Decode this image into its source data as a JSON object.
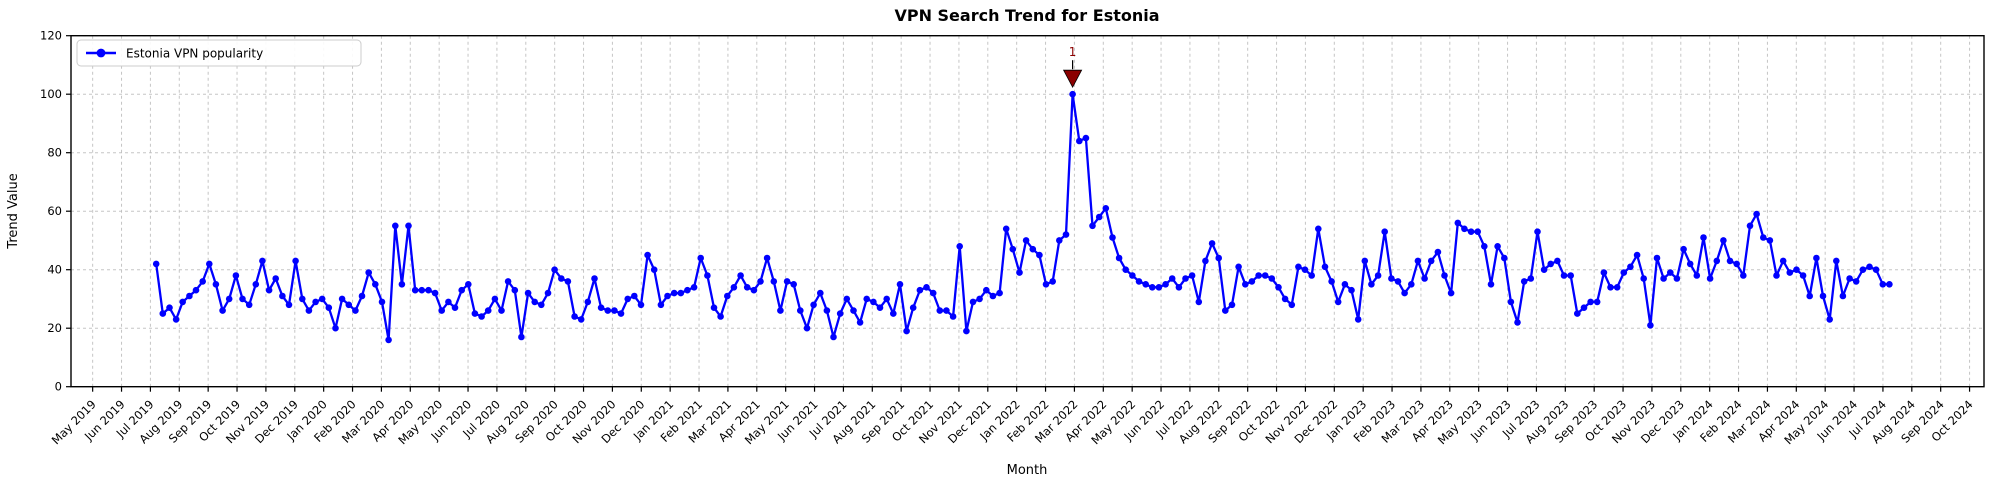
{
  "title": "VPN Search Trend for Estonia",
  "xlabel": "Month",
  "ylabel": "Trend Value",
  "legend": {
    "label": "Estonia VPN popularity"
  },
  "annotation": {
    "label": "1"
  },
  "colors": {
    "line": "#0000ff",
    "marker": "#0000ff",
    "annotation_marker": "#8b0000",
    "annotation_text": "#8b0000",
    "grid": "#bbbbbb",
    "spine": "#000000",
    "legend_border": "#cccccc"
  },
  "chart_data": {
    "type": "line",
    "title": "VPN Search Trend for Estonia",
    "xlabel": "Month",
    "ylabel": "Trend Value",
    "grid": true,
    "legend_position": "upper left",
    "ylim": [
      0,
      120
    ],
    "yticks": [
      0,
      20,
      40,
      60,
      80,
      100,
      120
    ],
    "x_tick_labels": [
      "May 2019",
      "Jun 2019",
      "Jul 2019",
      "Aug 2019",
      "Sep 2019",
      "Oct 2019",
      "Nov 2019",
      "Dec 2019",
      "Jan 2020",
      "Feb 2020",
      "Mar 2020",
      "Apr 2020",
      "May 2020",
      "Jun 2020",
      "Jul 2020",
      "Aug 2020",
      "Sep 2020",
      "Oct 2020",
      "Nov 2020",
      "Dec 2020",
      "Jan 2021",
      "Feb 2021",
      "Mar 2021",
      "Apr 2021",
      "May 2021",
      "Jun 2021",
      "Jul 2021",
      "Aug 2021",
      "Sep 2021",
      "Oct 2021",
      "Nov 2021",
      "Dec 2021",
      "Jan 2022",
      "Feb 2022",
      "Mar 2022",
      "Apr 2022",
      "May 2022",
      "Jun 2022",
      "Jul 2022",
      "Aug 2022",
      "Sep 2022",
      "Oct 2022",
      "Nov 2022",
      "Dec 2022",
      "Jan 2023",
      "Feb 2023",
      "Mar 2023",
      "Apr 2023",
      "May 2023",
      "Jun 2023",
      "Jul 2023",
      "Aug 2023",
      "Sep 2023",
      "Oct 2023",
      "Nov 2023",
      "Dec 2023",
      "Jan 2024",
      "Feb 2024",
      "Mar 2024",
      "Apr 2024",
      "May 2024",
      "Jun 2024",
      "Jul 2024",
      "Aug 2024",
      "Sep 2024",
      "Oct 2024"
    ],
    "x_cadence": "weekly",
    "x_start_month_offset": 2.2,
    "x_months_per_step": 0.22998,
    "xlim_months": [
      -0.75,
      65.5
    ],
    "series": [
      {
        "name": "Estonia VPN popularity",
        "values": [
          42,
          25,
          27,
          23,
          29,
          31,
          33,
          36,
          42,
          35,
          26,
          30,
          38,
          30,
          28,
          35,
          43,
          33,
          37,
          31,
          28,
          43,
          30,
          26,
          29,
          30,
          27,
          20,
          30,
          28,
          26,
          31,
          39,
          35,
          29,
          16,
          55,
          35,
          55,
          33,
          33,
          33,
          32,
          26,
          29,
          27,
          33,
          35,
          25,
          24,
          26,
          30,
          26,
          36,
          33,
          17,
          32,
          29,
          28,
          32,
          40,
          37,
          36,
          24,
          23,
          29,
          37,
          27,
          26,
          26,
          25,
          30,
          31,
          28,
          45,
          40,
          28,
          31,
          32,
          32,
          33,
          34,
          44,
          38,
          27,
          24,
          31,
          34,
          38,
          34,
          33,
          36,
          44,
          36,
          26,
          36,
          35,
          26,
          20,
          28,
          32,
          26,
          17,
          25,
          30,
          26,
          22,
          30,
          29,
          27,
          30,
          25,
          35,
          19,
          27,
          33,
          34,
          32,
          26,
          26,
          24,
          48,
          19,
          29,
          30,
          33,
          31,
          32,
          54,
          47,
          39,
          50,
          47,
          45,
          35,
          36,
          50,
          52,
          100,
          84,
          85,
          55,
          58,
          61,
          51,
          44,
          40,
          38,
          36,
          35,
          34,
          34,
          35,
          37,
          34,
          37,
          38,
          29,
          43,
          49,
          44,
          26,
          28,
          41,
          35,
          36,
          38,
          38,
          37,
          34,
          30,
          28,
          41,
          40,
          38,
          54,
          41,
          36,
          29,
          35,
          33,
          23,
          43,
          35,
          38,
          53,
          37,
          36,
          32,
          35,
          43,
          37,
          43,
          46,
          38,
          32,
          56,
          54,
          53,
          53,
          48,
          35,
          48,
          44,
          29,
          22,
          36,
          37,
          53,
          40,
          42,
          43,
          38,
          38,
          25,
          27,
          29,
          29,
          39,
          34,
          34,
          39,
          41,
          45,
          37,
          21,
          44,
          37,
          39,
          37,
          47,
          42,
          38,
          51,
          37,
          43,
          50,
          43,
          42,
          38,
          55,
          59,
          51,
          50,
          38,
          43,
          39,
          40,
          38,
          31,
          44,
          31,
          23,
          43,
          31,
          37,
          36,
          40,
          41,
          40,
          35,
          35
        ]
      }
    ],
    "annotation": {
      "label": "1",
      "series_point_index": 138,
      "value": 100
    }
  }
}
